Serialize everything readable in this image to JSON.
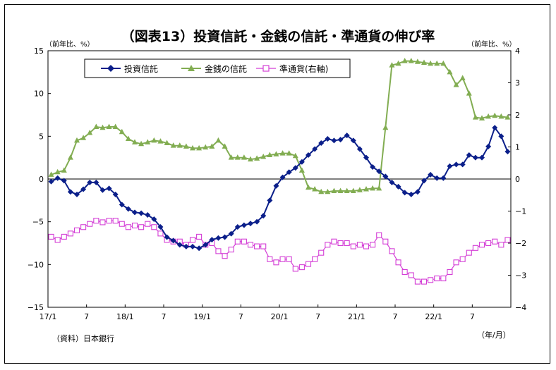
{
  "chart_data": {
    "type": "line",
    "title": "（図表13）投資信託・金銭の信託・準通貨の伸び率",
    "left_unit": "（前年比、%）",
    "right_unit": "（前年比、%）",
    "x_unit": "（年/月）",
    "source": "（資料）日本銀行",
    "x_tick_labels": [
      "17/1",
      "7",
      "18/1",
      "7",
      "19/1",
      "7",
      "20/1",
      "7",
      "21/1",
      "7",
      "22/1",
      "7"
    ],
    "y_left": {
      "min": -15,
      "max": 15,
      "ticks": [
        "15",
        "10",
        "5",
        "0",
        "−5",
        "−10",
        "−15"
      ]
    },
    "y_right": {
      "min": -4,
      "max": 4,
      "ticks": [
        "4",
        "3",
        "2",
        "1",
        "0",
        "−1",
        "−2",
        "−3",
        "−4"
      ]
    },
    "series": [
      {
        "name": "投資信託",
        "axis": "left",
        "color": "#0b1f8a",
        "marker": "diamond",
        "values": [
          -0.3,
          0.1,
          -0.2,
          -1.5,
          -1.8,
          -1.2,
          -0.4,
          -0.4,
          -1.3,
          -1.1,
          -1.8,
          -3.0,
          -3.5,
          -3.9,
          -4.0,
          -4.2,
          -4.7,
          -5.6,
          -6.8,
          -7.2,
          -7.7,
          -7.9,
          -7.9,
          -8.1,
          -7.7,
          -7.1,
          -6.9,
          -6.8,
          -6.4,
          -5.6,
          -5.4,
          -5.2,
          -5.0,
          -4.3,
          -2.5,
          -0.8,
          0.2,
          0.8,
          1.3,
          2.0,
          2.8,
          3.5,
          4.2,
          4.7,
          4.5,
          4.6,
          5.1,
          4.5,
          3.5,
          2.5,
          1.4,
          0.9,
          0.3,
          -0.4,
          -0.9,
          -1.6,
          -1.8,
          -1.5,
          -0.2,
          0.5,
          0.1,
          0.1,
          1.5,
          1.7,
          1.7,
          2.8,
          2.5,
          2.5,
          3.8,
          6.0,
          5.0,
          3.2
        ]
      },
      {
        "name": "金銭の信託",
        "axis": "left",
        "color": "#82ad52",
        "marker": "triangle",
        "values": [
          0.5,
          0.8,
          1.0,
          2.5,
          4.5,
          4.8,
          5.4,
          6.1,
          6.0,
          6.1,
          6.1,
          5.5,
          4.7,
          4.3,
          4.1,
          4.3,
          4.5,
          4.4,
          4.2,
          3.9,
          3.9,
          3.8,
          3.6,
          3.6,
          3.7,
          3.8,
          4.5,
          3.8,
          2.5,
          2.5,
          2.5,
          2.3,
          2.4,
          2.6,
          2.8,
          2.9,
          3.0,
          3.0,
          2.7,
          1.0,
          -1.0,
          -1.2,
          -1.5,
          -1.5,
          -1.4,
          -1.4,
          -1.4,
          -1.4,
          -1.3,
          -1.2,
          -1.1,
          -1.1,
          6.0,
          13.3,
          13.5,
          13.8,
          13.8,
          13.7,
          13.6,
          13.5,
          13.5,
          13.5,
          12.5,
          11.0,
          11.8,
          10.0,
          7.2,
          7.1,
          7.3,
          7.4,
          7.3,
          7.2
        ]
      },
      {
        "name": "準通貨(右軸)",
        "axis": "right",
        "color": "#d43fd6",
        "marker": "square",
        "values": [
          -1.8,
          -1.9,
          -1.8,
          -1.7,
          -1.6,
          -1.5,
          -1.4,
          -1.3,
          -1.35,
          -1.3,
          -1.3,
          -1.4,
          -1.5,
          -1.45,
          -1.5,
          -1.4,
          -1.5,
          -1.7,
          -1.9,
          -1.95,
          -1.95,
          -2.05,
          -1.9,
          -1.8,
          -2.05,
          -2.0,
          -2.25,
          -2.4,
          -2.2,
          -1.95,
          -1.95,
          -2.05,
          -2.1,
          -2.1,
          -2.5,
          -2.6,
          -2.5,
          -2.5,
          -2.8,
          -2.75,
          -2.65,
          -2.5,
          -2.3,
          -2.05,
          -1.95,
          -2.0,
          -2.0,
          -2.1,
          -2.05,
          -2.1,
          -2.05,
          -1.75,
          -1.95,
          -2.25,
          -2.6,
          -2.9,
          -3.0,
          -3.2,
          -3.2,
          -3.15,
          -3.1,
          -3.1,
          -2.9,
          -2.6,
          -2.5,
          -2.3,
          -2.15,
          -2.05,
          -2.0,
          -1.95,
          -2.05,
          -1.9
        ]
      }
    ],
    "grid": false,
    "legend_placement": "top-left"
  }
}
